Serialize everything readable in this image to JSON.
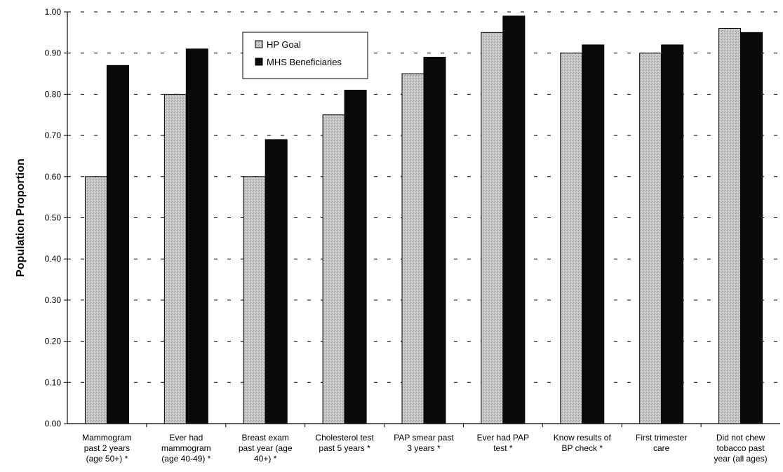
{
  "chart_data": {
    "type": "bar",
    "title": "",
    "xlabel": "",
    "ylabel": "Population Proportion",
    "ylim": [
      0,
      1.0
    ],
    "yticks": [
      "0.00",
      "0.10",
      "0.20",
      "0.30",
      "0.40",
      "0.50",
      "0.60",
      "0.70",
      "0.80",
      "0.90",
      "1.00"
    ],
    "grid": "horizontal dashed",
    "legend_position": "top-center",
    "categories": [
      [
        "Mammogram",
        "past 2 years",
        "(age 50+) *"
      ],
      [
        "Ever had",
        "mammogram",
        "(age 40-49) *"
      ],
      [
        "Breast exam",
        "past year (age",
        "40+) *"
      ],
      [
        "Cholesterol test",
        "past 5 years *"
      ],
      [
        "PAP smear past",
        "3 years *"
      ],
      [
        "Ever had PAP",
        "test *"
      ],
      [
        "Know results of",
        "BP check *"
      ],
      [
        "First trimester",
        "care"
      ],
      [
        "Did not chew",
        "tobacco past",
        "year (all ages)"
      ]
    ],
    "series": [
      {
        "name": "HP Goal",
        "color": "#bdbdbd",
        "values": [
          0.6,
          0.8,
          0.6,
          0.75,
          0.85,
          0.95,
          0.9,
          0.9,
          0.96
        ]
      },
      {
        "name": "MHS Beneficiaries",
        "color": "#0a0a0a",
        "values": [
          0.87,
          0.91,
          0.69,
          0.81,
          0.89,
          0.99,
          0.92,
          0.92,
          0.95
        ]
      }
    ]
  }
}
